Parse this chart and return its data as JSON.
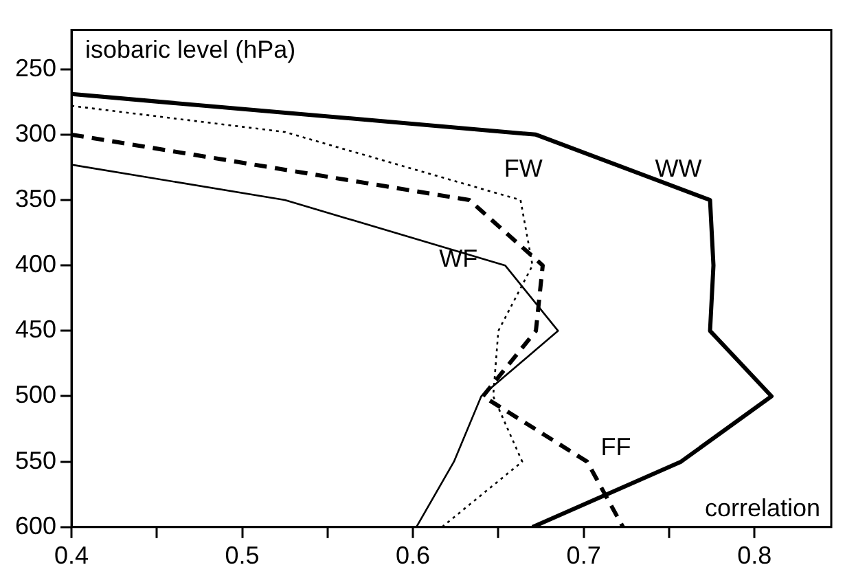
{
  "chart_data": {
    "type": "line",
    "xlabel": "correlation",
    "ylabel": "isobaric level (hPa)",
    "xlim": [
      0.4,
      0.845
    ],
    "ylim": [
      600,
      220
    ],
    "xticks": [
      0.4,
      {
        "value": 0.45,
        "label": null
      },
      0.5,
      {
        "value": 0.55,
        "label": null
      },
      0.6,
      {
        "value": 0.65,
        "label": null
      },
      0.7,
      {
        "value": 0.75,
        "label": null
      },
      0.8
    ],
    "yticks": [
      250,
      300,
      350,
      400,
      450,
      500,
      550,
      600
    ],
    "grid": false,
    "legend": false,
    "marker": "none",
    "series": [
      {
        "name": "WW",
        "color": "#000000",
        "line_style": "solid",
        "x": [
          0.4,
          0.672,
          0.774,
          0.776,
          0.774,
          0.81,
          0.757,
          0.67
        ],
        "values": [
          269,
          300,
          350,
          400,
          450,
          500,
          550,
          600
        ]
      },
      {
        "name": "FW",
        "color": "#000000",
        "line_style": "dotted",
        "x": [
          0.4,
          0.525,
          0.663,
          0.67,
          0.65,
          0.647,
          0.664,
          0.617
        ],
        "values": [
          278,
          298,
          350,
          400,
          450,
          500,
          550,
          600
        ]
      },
      {
        "name": "WF",
        "color": "#000000",
        "line_style": "solid",
        "x": [
          0.4,
          0.525,
          0.654,
          0.685,
          0.64,
          0.624,
          0.602
        ],
        "values": [
          323,
          350,
          400,
          450,
          500,
          550,
          600
        ]
      },
      {
        "name": "FF",
        "color": "#000000",
        "line_style": "dashed",
        "x": [
          0.4,
          0.633,
          0.676,
          0.672,
          0.641,
          0.702,
          0.723
        ],
        "values": [
          300,
          350,
          400,
          450,
          500,
          550,
          600
        ]
      }
    ]
  }
}
